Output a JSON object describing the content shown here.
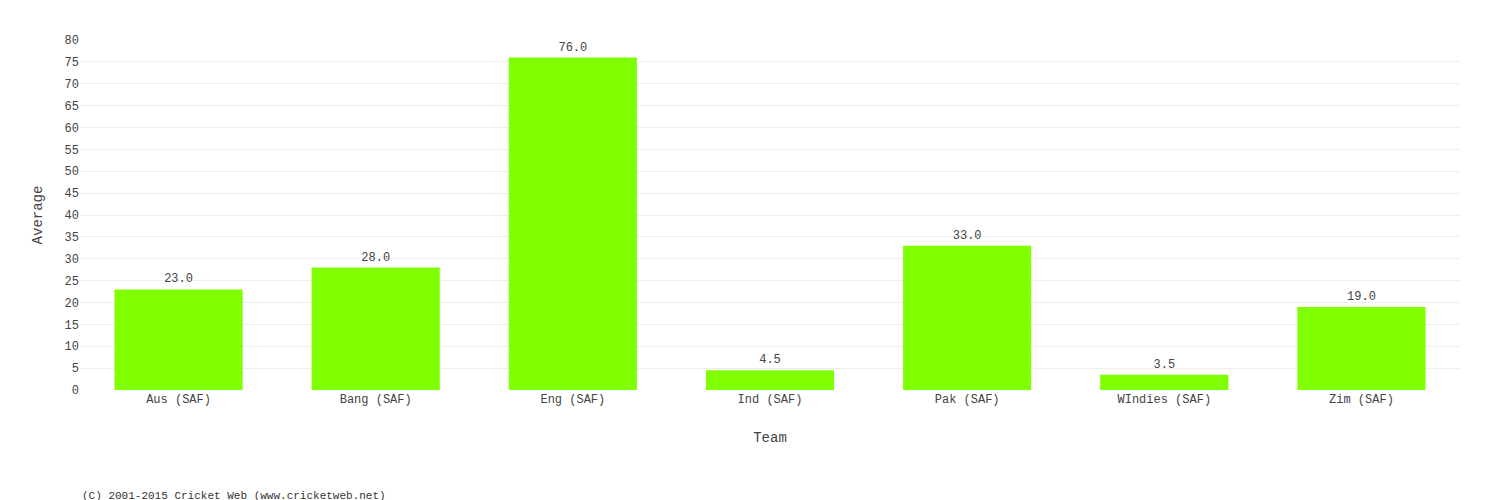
{
  "chart_data": {
    "type": "bar",
    "categories": [
      "Aus (SAF)",
      "Bang (SAF)",
      "Eng (SAF)",
      "Ind (SAF)",
      "Pak (SAF)",
      "WIndies (SAF)",
      "Zim (SAF)"
    ],
    "values": [
      23.0,
      28.0,
      76.0,
      4.5,
      33.0,
      3.5,
      19.0
    ],
    "value_labels": [
      "23.0",
      "28.0",
      "76.0",
      "4.5",
      "33.0",
      "3.5",
      "19.0"
    ],
    "data_labels": true,
    "color": "#7fff00",
    "xlabel": "Team",
    "ylabel": "Average",
    "ylim": [
      0,
      80
    ],
    "yticks": [
      0,
      5,
      10,
      15,
      20,
      25,
      30,
      35,
      40,
      45,
      50,
      55,
      60,
      65,
      70,
      75,
      80
    ],
    "grid": true,
    "annotations": [
      "(C) 2001-2015 Cricket Web (www.cricketweb.net)"
    ]
  }
}
